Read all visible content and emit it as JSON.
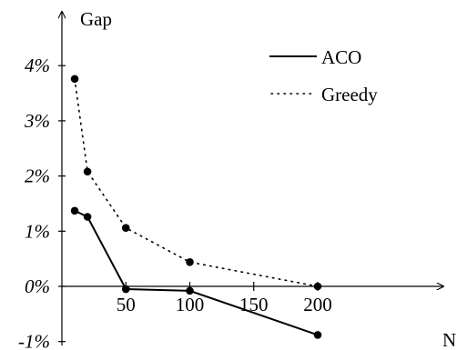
{
  "chart_data": {
    "type": "line",
    "xlabel": "N",
    "ylabel": "Gap",
    "x": [
      10,
      20,
      50,
      100,
      200
    ],
    "xlim": [
      0,
      230
    ],
    "ylim": [
      -1,
      4.7
    ],
    "x_ticks": [
      50,
      100,
      150,
      200
    ],
    "x_tick_labels": [
      "50",
      "100",
      "150",
      "200"
    ],
    "y_ticks": [
      -1,
      0,
      1,
      2,
      3,
      4
    ],
    "y_tick_labels": [
      "-1%",
      "0%",
      "1%",
      "2%",
      "3%",
      "4%"
    ],
    "series": [
      {
        "name": "ACO",
        "style": "solid",
        "values": [
          1.37,
          1.26,
          -0.05,
          -0.08,
          -0.88
        ]
      },
      {
        "name": "Greedy",
        "style": "dotted",
        "values": [
          3.76,
          2.08,
          1.06,
          0.44,
          0.0
        ]
      }
    ],
    "legend": "top-right",
    "grid": false,
    "colors": {
      "line": "#000000",
      "background": "#ffffff"
    }
  }
}
